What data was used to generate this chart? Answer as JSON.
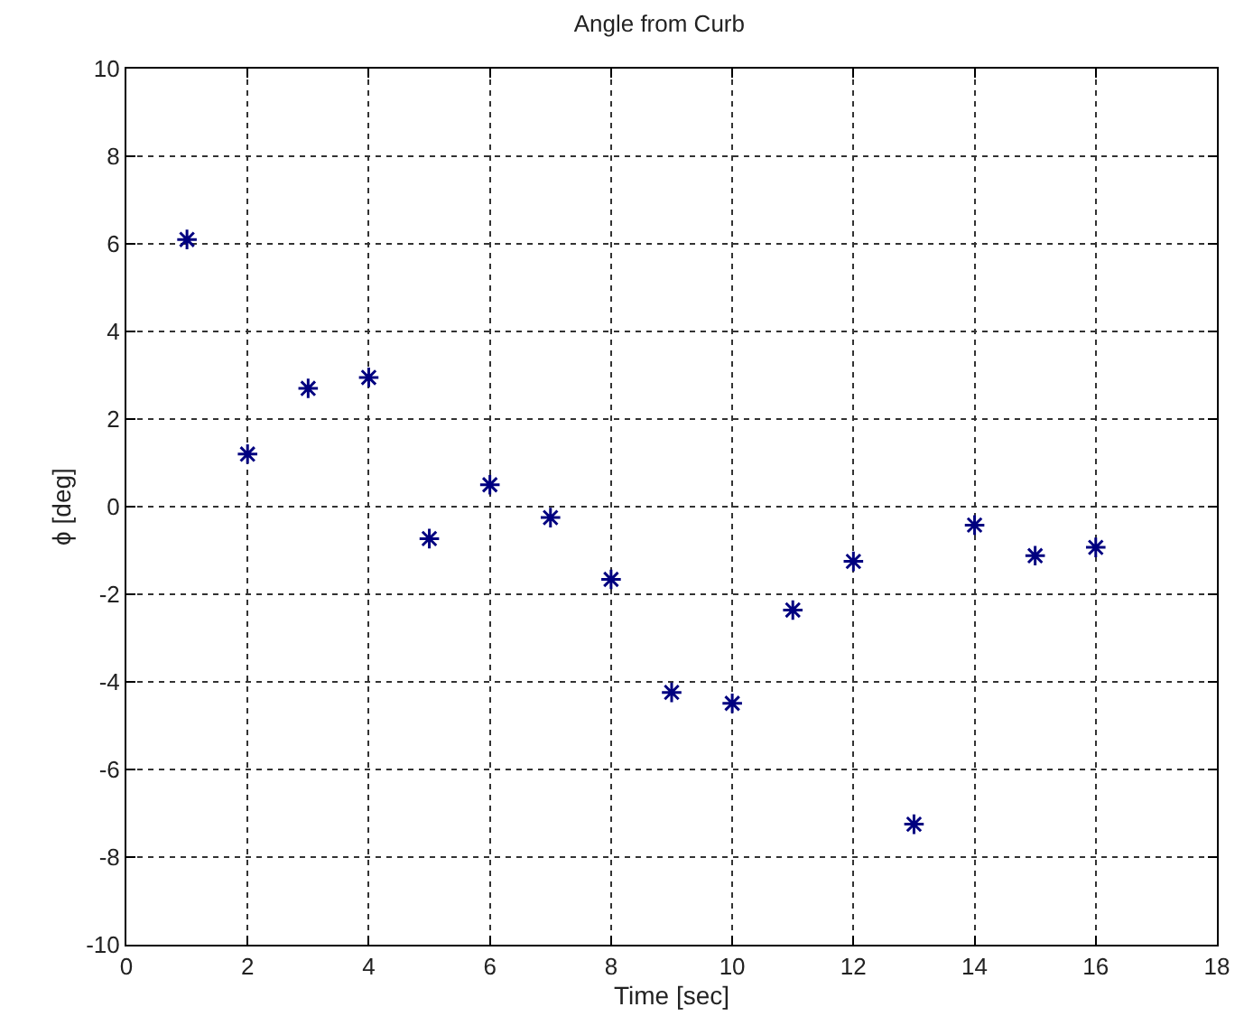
{
  "chart_data": {
    "type": "scatter",
    "title": "Angle from Curb",
    "xlabel": "Time [sec]",
    "ylabel": "ϕ [deg]",
    "x": [
      1,
      2,
      3,
      4,
      5,
      6,
      7,
      8,
      9,
      10,
      11,
      12,
      13,
      14,
      15,
      16
    ],
    "series": [
      {
        "color": "#000080",
        "values": [
          6.1,
          1.2,
          2.7,
          2.95,
          -0.73,
          0.5,
          -0.25,
          -1.66,
          -4.24,
          -4.49,
          -2.36,
          -1.25,
          -7.25,
          -0.42,
          -1.12,
          -0.93
        ]
      }
    ],
    "xlim": [
      0,
      18
    ],
    "xticks": [
      0,
      2,
      4,
      6,
      8,
      10,
      12,
      14,
      16,
      18
    ],
    "ylim": [
      -10,
      10
    ],
    "yticks": [
      -10,
      -8,
      -6,
      -4,
      -2,
      0,
      2,
      4,
      6,
      8,
      10
    ],
    "grid": true,
    "marker": "cross"
  }
}
